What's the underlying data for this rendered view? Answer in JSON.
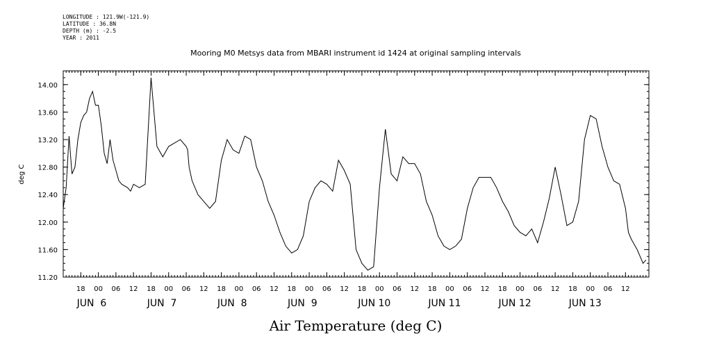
{
  "header": {
    "longitude": "LONGITUDE : 121.9W(-121.9)",
    "latitude": "LATITUDE : 36.8N",
    "depth": "DEPTH (m) : -2.5",
    "year": "YEAR : 2011"
  },
  "chart_data": {
    "type": "line",
    "title": "Mooring M0 Metsys data from MBARI instrument id 1424 at original sampling intervals",
    "ylabel": "deg C",
    "xlabel": "Air Temperature (deg C)",
    "ylim": [
      11.2,
      14.2
    ],
    "xlim": [
      "2011-06-05T12:00",
      "2011-06-13T15:00"
    ],
    "yticks": [
      "11.20",
      "11.60",
      "12.00",
      "12.40",
      "12.80",
      "13.20",
      "13.60",
      "14.00"
    ],
    "xticks_hour": [
      "18",
      "00",
      "06",
      "12",
      "18",
      "00",
      "06",
      "12",
      "18",
      "00",
      "06",
      "12",
      "18",
      "00",
      "06",
      "12",
      "18",
      "00",
      "06",
      "12",
      "18",
      "00",
      "06",
      "12",
      "18",
      "00",
      "06",
      "12",
      "18",
      "00",
      "06",
      "12"
    ],
    "xticks_day": [
      "JUN  6",
      "JUN  7",
      "JUN  8",
      "JUN  9",
      "JUN 10",
      "JUN 11",
      "JUN 12",
      "JUN 13"
    ],
    "grid": false,
    "series": [
      {
        "x_hours_from_jun5_12": [
          0,
          1,
          2,
          3,
          4,
          5,
          6,
          7,
          8,
          9,
          10,
          11,
          12,
          13,
          14,
          15,
          16,
          17,
          18,
          19,
          20,
          22,
          23,
          24,
          26,
          28,
          30,
          32,
          34,
          36,
          38,
          40,
          42,
          42.5,
          43,
          44,
          46,
          48,
          50,
          52,
          54,
          56,
          58,
          60,
          62,
          64,
          66,
          68,
          70,
          72,
          74,
          76,
          78,
          80,
          82,
          84,
          86,
          88,
          90,
          92,
          94,
          96,
          98,
          100,
          102,
          104,
          106,
          108,
          110,
          112,
          114,
          116,
          118,
          120,
          122,
          123,
          124,
          126,
          128,
          130,
          132,
          134,
          136,
          138,
          140,
          142,
          144,
          146,
          148,
          150,
          152,
          154,
          156,
          158,
          160,
          162,
          164,
          166,
          168,
          170,
          172,
          174,
          176,
          178,
          180,
          182,
          184,
          186,
          188,
          190,
          192,
          193,
          194,
          196,
          198,
          199
        ],
        "values": [
          12.2,
          12.5,
          13.25,
          12.7,
          12.8,
          13.2,
          13.45,
          13.55,
          13.6,
          13.8,
          13.9,
          13.7,
          13.7,
          13.4,
          13.0,
          12.85,
          13.2,
          12.9,
          12.75,
          12.6,
          12.55,
          12.5,
          12.45,
          12.55,
          12.5,
          12.55,
          14.1,
          13.1,
          12.95,
          13.1,
          13.15,
          13.2,
          13.1,
          13.05,
          12.8,
          12.6,
          12.4,
          12.3,
          12.2,
          12.3,
          12.9,
          13.2,
          13.05,
          13.0,
          13.25,
          13.2,
          12.8,
          12.6,
          12.3,
          12.1,
          11.85,
          11.65,
          11.55,
          11.6,
          11.8,
          12.3,
          12.5,
          12.6,
          12.55,
          12.45,
          12.9,
          12.75,
          12.55,
          11.6,
          11.4,
          11.3,
          11.35,
          12.5,
          13.35,
          12.7,
          12.6,
          12.95,
          12.85,
          12.85,
          12.7,
          12.5,
          12.3,
          12.1,
          11.8,
          11.65,
          11.6,
          11.65,
          11.75,
          12.2,
          12.5,
          12.65,
          12.65,
          12.65,
          12.5,
          12.3,
          12.15,
          11.95,
          11.85,
          11.8,
          11.9,
          11.7,
          12.0,
          12.35,
          12.8,
          12.4,
          11.95,
          12.0,
          12.3,
          13.2,
          13.55,
          13.5,
          13.1,
          12.8,
          12.6,
          12.55,
          12.2,
          11.85,
          11.75,
          11.6,
          11.4,
          11.45
        ]
      }
    ]
  }
}
